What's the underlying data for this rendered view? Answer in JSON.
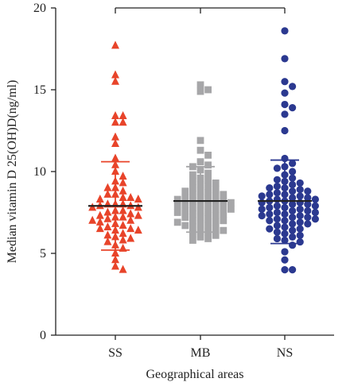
{
  "chart_data": {
    "type": "scatter",
    "subtype": "dot-plot with median and interquartile bars",
    "xlabel": "Geographical areas",
    "ylabel": "Median vitamin D 25(OH)D(ng/ml)",
    "ylim": [
      0,
      20
    ],
    "yticks": [
      "0",
      "5",
      "10",
      "15",
      "20"
    ],
    "categories": [
      "SS",
      "MB",
      "NS"
    ],
    "comparison_bracket": true,
    "series": [
      {
        "category": "SS",
        "marker": "triangle",
        "color": "#e8442a",
        "median": 7.9,
        "whisker": [
          5.2,
          10.6
        ],
        "values": [
          17.7,
          15.9,
          15.5,
          13.4,
          13.4,
          13.0,
          13.0,
          12.1,
          11.7,
          10.8,
          10.4,
          10.0,
          9.7,
          9.4,
          9.3,
          9.0,
          9.0,
          8.8,
          8.6,
          8.6,
          8.4,
          8.4,
          8.3,
          8.3,
          8.0,
          8.0,
          8.0,
          7.9,
          7.9,
          7.8,
          7.8,
          7.6,
          7.6,
          7.5,
          7.4,
          7.3,
          7.3,
          7.2,
          7.2,
          7.1,
          7.0,
          7.0,
          6.9,
          6.8,
          6.7,
          6.6,
          6.5,
          6.5,
          6.4,
          6.4,
          6.2,
          6.1,
          6.0,
          5.9,
          5.8,
          5.7,
          5.5,
          5.3,
          5.0,
          4.6,
          4.2,
          4.0
        ]
      },
      {
        "category": "MB",
        "marker": "square",
        "color": "#a6a6a8",
        "median": 8.2,
        "whisker": [
          6.3,
          10.3
        ],
        "values": [
          15.3,
          15.0,
          14.9,
          11.9,
          11.3,
          11.0,
          10.6,
          10.4,
          10.3,
          10.1,
          9.9,
          9.8,
          9.6,
          9.5,
          9.4,
          9.3,
          9.2,
          9.1,
          9.0,
          8.9,
          8.8,
          8.8,
          8.7,
          8.6,
          8.6,
          8.5,
          8.4,
          8.4,
          8.3,
          8.3,
          8.2,
          8.2,
          8.1,
          8.1,
          8.0,
          8.0,
          7.9,
          7.9,
          7.8,
          7.8,
          7.7,
          7.7,
          7.6,
          7.6,
          7.5,
          7.5,
          7.4,
          7.4,
          7.3,
          7.2,
          7.2,
          7.1,
          7.0,
          7.0,
          6.9,
          6.9,
          6.8,
          6.7,
          6.7,
          6.6,
          6.5,
          6.4,
          6.4,
          6.3,
          6.2,
          6.1,
          6.0,
          5.9,
          5.8
        ]
      },
      {
        "category": "NS",
        "marker": "circle",
        "color": "#2b3990",
        "median": 8.2,
        "whisker": [
          5.6,
          10.7
        ],
        "values": [
          18.6,
          16.9,
          15.5,
          15.2,
          14.8,
          14.1,
          13.9,
          13.5,
          12.5,
          10.8,
          10.5,
          10.3,
          10.2,
          10.0,
          9.8,
          9.6,
          9.5,
          9.4,
          9.3,
          9.2,
          9.1,
          9.0,
          9.0,
          8.9,
          8.8,
          8.8,
          8.7,
          8.6,
          8.6,
          8.5,
          8.5,
          8.4,
          8.4,
          8.3,
          8.3,
          8.2,
          8.2,
          8.1,
          8.1,
          8.0,
          8.0,
          7.9,
          7.9,
          7.8,
          7.8,
          7.7,
          7.7,
          7.6,
          7.6,
          7.5,
          7.5,
          7.4,
          7.4,
          7.3,
          7.3,
          7.2,
          7.2,
          7.1,
          7.1,
          7.0,
          7.0,
          6.9,
          6.8,
          6.8,
          6.7,
          6.6,
          6.5,
          6.5,
          6.4,
          6.3,
          6.2,
          6.1,
          6.0,
          5.9,
          5.8,
          5.7,
          5.5,
          5.1,
          4.6,
          4.0,
          4.0
        ]
      }
    ]
  }
}
